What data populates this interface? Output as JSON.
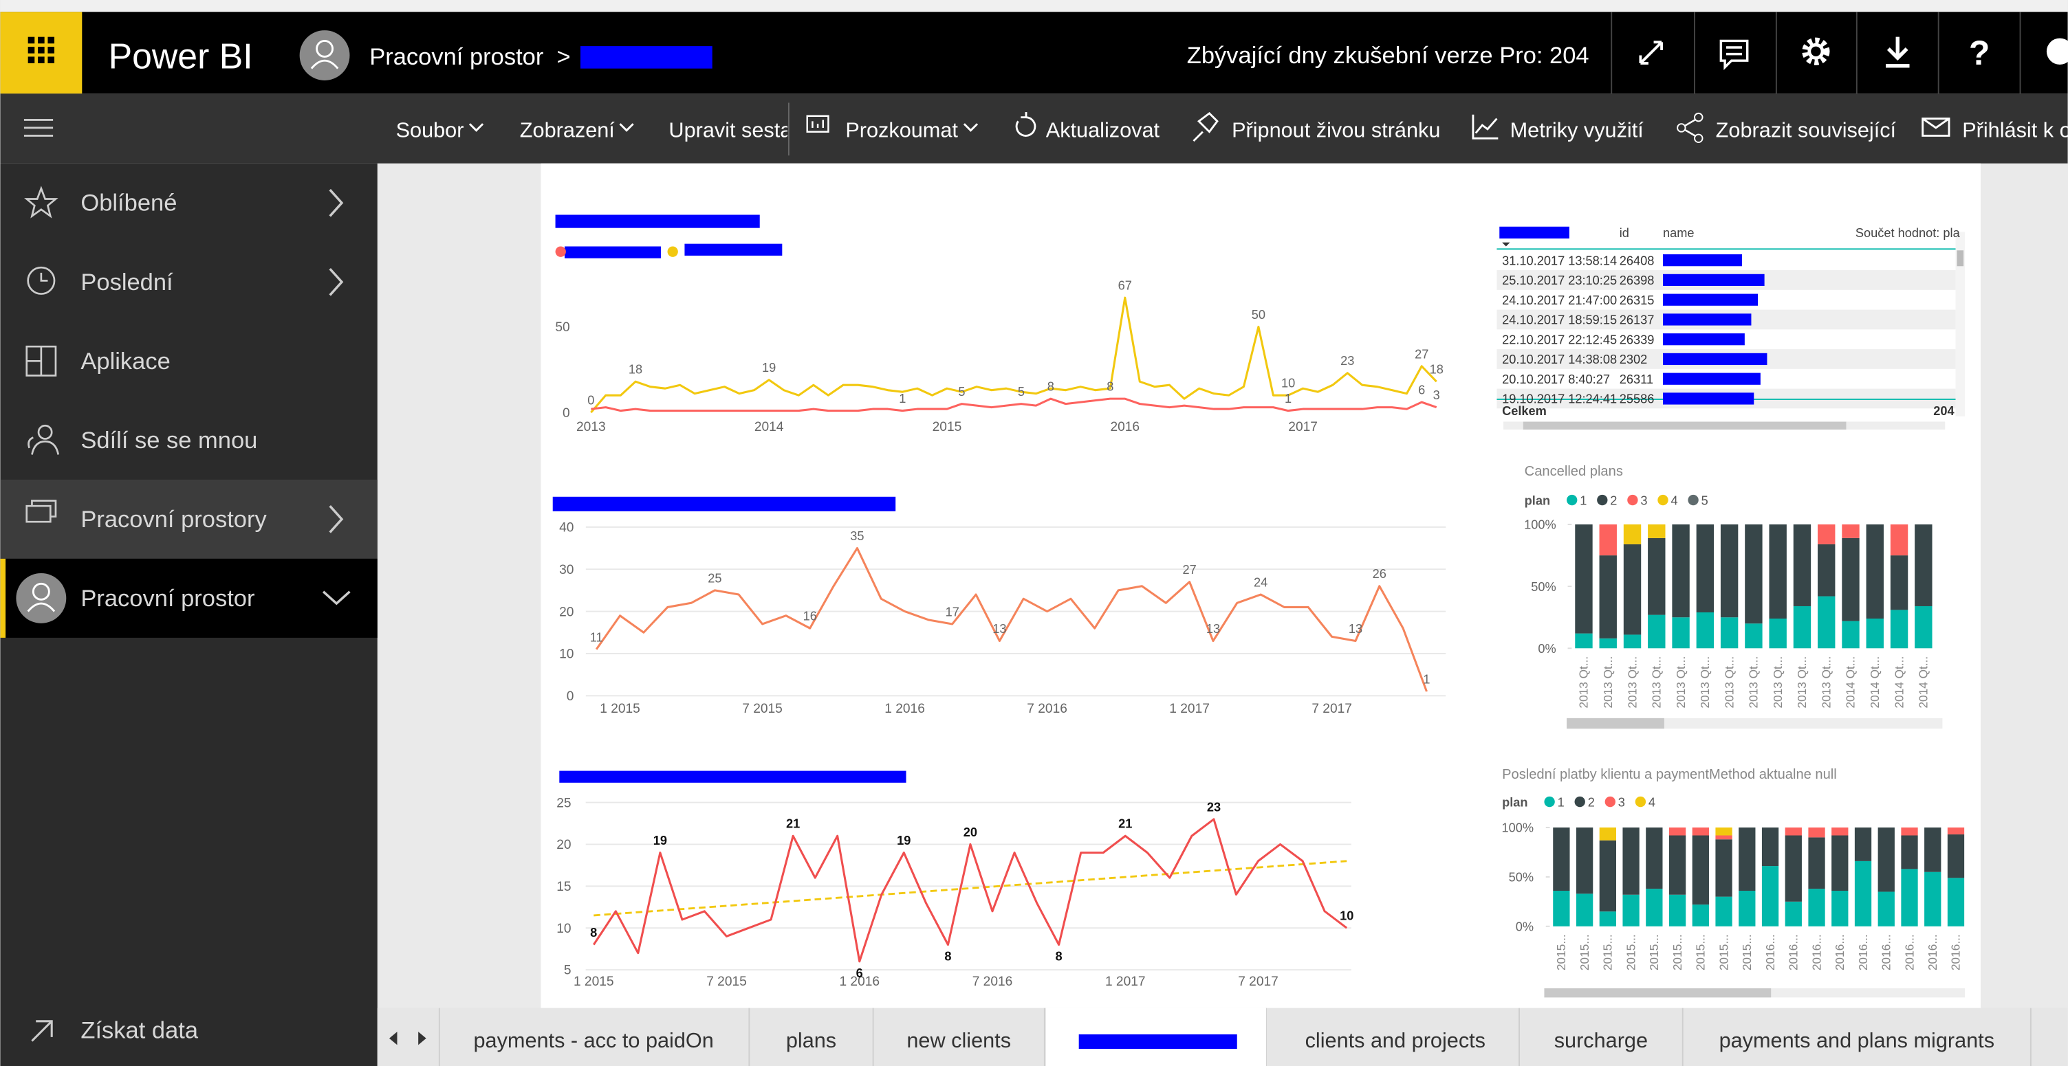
{
  "topbar": {
    "app_name": "Power BI",
    "workspace": "Pracovní prostor",
    "separator": ">",
    "trial": "Zbývající dny zkušební verze Pro: 204",
    "help_icon": "?"
  },
  "toolbar": [
    "Soubor",
    "Zobrazení",
    "Upravit sesta",
    "Prozkoumat",
    "Aktualizovat",
    "Připnout živou stránku",
    "Metriky využití",
    "Zobrazit související",
    "Přihlásit k o"
  ],
  "sidebar": {
    "items": [
      "Oblíbené",
      "Poslední",
      "Aplikace",
      "Sdílí se se mnou",
      "Pracovní prostory",
      "Pracovní prostor"
    ],
    "footer": "Získat data"
  },
  "table": {
    "headers": [
      "id",
      "name",
      "Součet hodnot: pla"
    ],
    "rows": [
      [
        "31.10.2017 13:58:14",
        "26408"
      ],
      [
        "25.10.2017 23:10:25",
        "26398"
      ],
      [
        "24.10.2017 21:47:00",
        "26315"
      ],
      [
        "24.10.2017 18:59:15",
        "26137"
      ],
      [
        "22.10.2017 22:12:45",
        "26339"
      ],
      [
        "20.10.2017 14:38:08",
        "2302"
      ],
      [
        "20.10.2017 8:40:27",
        "26311"
      ],
      [
        "19.10.2017 12:24:41",
        "25586"
      ]
    ],
    "total_label": "Celkem",
    "total": "204"
  },
  "chart_data": [
    {
      "type": "line",
      "x": [
        2013,
        2013.083,
        2013.167,
        2013.25,
        2013.333,
        2013.417,
        2013.5,
        2013.583,
        2013.667,
        2013.75,
        2013.833,
        2013.917,
        2014,
        2014.083,
        2014.167,
        2014.25,
        2014.333,
        2014.417,
        2014.5,
        2014.583,
        2014.667,
        2014.75,
        2014.833,
        2014.917,
        2015,
        2015.083,
        2015.167,
        2015.25,
        2015.333,
        2015.417,
        2015.5,
        2015.583,
        2015.667,
        2015.75,
        2015.833,
        2015.917,
        2016,
        2016.083,
        2016.167,
        2016.25,
        2016.333,
        2016.417,
        2016.5,
        2016.583,
        2016.667,
        2016.75,
        2016.833,
        2016.917,
        2017,
        2017.083,
        2017.167,
        2017.25,
        2017.333,
        2017.417,
        2017.5,
        2017.583,
        2017.667,
        2017.75
      ],
      "xlim": [
        2012.94,
        2017.8
      ],
      "xticks": [
        2013,
        2014,
        2015,
        2016,
        2017
      ],
      "ylim": [
        0,
        75
      ],
      "yticks": [
        0,
        50
      ],
      "grid": false,
      "series": [
        {
          "color": "#f2c80f",
          "values": [
            0,
            10,
            10,
            18,
            15,
            14,
            16,
            11,
            13,
            15,
            11,
            13,
            19,
            13,
            10,
            16,
            10,
            16,
            16,
            15,
            13,
            12,
            14,
            10,
            14,
            12,
            15,
            13,
            14,
            12,
            11,
            14,
            13,
            15,
            13,
            14,
            67,
            18,
            15,
            16,
            8,
            14,
            11,
            10,
            15,
            50,
            10,
            10,
            14,
            12,
            16,
            23,
            16,
            15,
            13,
            11,
            27,
            18
          ],
          "value_labels": [
            "0",
            null,
            null,
            "18",
            null,
            null,
            null,
            null,
            null,
            null,
            null,
            null,
            "19",
            null,
            null,
            null,
            null,
            null,
            null,
            null,
            null,
            null,
            null,
            null,
            null,
            null,
            null,
            null,
            null,
            null,
            null,
            null,
            null,
            null,
            null,
            null,
            "67",
            null,
            null,
            null,
            null,
            null,
            null,
            null,
            null,
            "50",
            null,
            "10",
            null,
            null,
            null,
            "23",
            null,
            null,
            null,
            null,
            "27",
            "18"
          ]
        },
        {
          "color": "#fd625e",
          "values": [
            2,
            3,
            1,
            2,
            1,
            1,
            1,
            1,
            1,
            1,
            1,
            1,
            1,
            1,
            1,
            2,
            1,
            1,
            1,
            2,
            2,
            1,
            2,
            2,
            2,
            5,
            4,
            3,
            4,
            5,
            4,
            8,
            5,
            6,
            7,
            8,
            8,
            5,
            4,
            3,
            4,
            3,
            2,
            2,
            3,
            3,
            3,
            1,
            2,
            2,
            2,
            2,
            2,
            3,
            3,
            2,
            6,
            3
          ],
          "value_labels": [
            null,
            null,
            null,
            null,
            null,
            null,
            null,
            null,
            null,
            null,
            null,
            null,
            null,
            null,
            null,
            null,
            null,
            null,
            null,
            null,
            null,
            "1",
            null,
            null,
            null,
            "5",
            null,
            null,
            null,
            "5",
            null,
            "8",
            null,
            null,
            null,
            "8",
            null,
            null,
            null,
            null,
            null,
            null,
            null,
            null,
            null,
            null,
            null,
            "1",
            null,
            null,
            null,
            null,
            null,
            null,
            null,
            null,
            "6",
            "3"
          ]
        }
      ]
    },
    {
      "type": "line",
      "x": [
        2014.917,
        2015,
        2015.083,
        2015.167,
        2015.25,
        2015.333,
        2015.417,
        2015.5,
        2015.583,
        2015.667,
        2015.75,
        2015.833,
        2015.917,
        2016,
        2016.083,
        2016.167,
        2016.25,
        2016.333,
        2016.417,
        2016.5,
        2016.583,
        2016.667,
        2016.75,
        2016.833,
        2016.917,
        2017,
        2017.083,
        2017.167,
        2017.25,
        2017.333,
        2017.417,
        2017.5,
        2017.583,
        2017.667,
        2017.75,
        2017.833
      ],
      "xlim": [
        2014.88,
        2017.9
      ],
      "xticks": [
        {
          "value": 2015,
          "label": "1 2015"
        },
        {
          "value": 2015.5,
          "label": "7 2015"
        },
        {
          "value": 2016,
          "label": "1 2016"
        },
        {
          "value": 2016.5,
          "label": "7 2016"
        },
        {
          "value": 2017,
          "label": "1 2017"
        },
        {
          "value": 2017.5,
          "label": "7 2017"
        }
      ],
      "ylim": [
        0,
        40
      ],
      "yticks": [
        0,
        10,
        20,
        30,
        40
      ],
      "grid": true,
      "series": [
        {
          "color": "#f5845b",
          "values": [
            11,
            19,
            15,
            21,
            22,
            25,
            24,
            17,
            19,
            16,
            26,
            35,
            23,
            20,
            18,
            17,
            24,
            13,
            23,
            20,
            23,
            16,
            25,
            26,
            22,
            27,
            13,
            22,
            24,
            21,
            21,
            14,
            13,
            26,
            16,
            1
          ],
          "value_labels": [
            "11",
            null,
            null,
            null,
            null,
            "25",
            null,
            null,
            null,
            "16",
            null,
            "35",
            null,
            null,
            null,
            "17",
            null,
            "13",
            null,
            null,
            null,
            null,
            null,
            null,
            null,
            "27",
            "13",
            null,
            "24",
            null,
            null,
            null,
            "13",
            "26",
            null,
            "1"
          ]
        }
      ]
    },
    {
      "type": "line",
      "x": [
        2015,
        2015.083,
        2015.167,
        2015.25,
        2015.333,
        2015.417,
        2015.5,
        2015.583,
        2015.667,
        2015.75,
        2015.833,
        2015.917,
        2016,
        2016.083,
        2016.167,
        2016.25,
        2016.333,
        2016.417,
        2016.5,
        2016.583,
        2016.667,
        2016.75,
        2016.833,
        2016.917,
        2017,
        2017.083,
        2017.167,
        2017.25,
        2017.333,
        2017.417,
        2017.5,
        2017.583,
        2017.667,
        2017.75,
        2017.833
      ],
      "xlim": [
        2014.97,
        2017.85
      ],
      "xticks": [
        {
          "value": 2015,
          "label": "1 2015"
        },
        {
          "value": 2015.5,
          "label": "7 2015"
        },
        {
          "value": 2016,
          "label": "1 2016"
        },
        {
          "value": 2016.5,
          "label": "7 2016"
        },
        {
          "value": 2017,
          "label": "1 2017"
        },
        {
          "value": 2017.5,
          "label": "7 2017"
        }
      ],
      "ylim": [
        5,
        25
      ],
      "yticks": [
        5,
        10,
        15,
        20,
        25
      ],
      "grid": true,
      "series": [
        {
          "color": "#f04e4e",
          "values": [
            8,
            12,
            7,
            19,
            11,
            12,
            9,
            10,
            11,
            21,
            16,
            21,
            6,
            14,
            19,
            13,
            8,
            20,
            12,
            19,
            13,
            8,
            19,
            19,
            21,
            19,
            16,
            21,
            23,
            14,
            18,
            20,
            18,
            12,
            10
          ],
          "value_labels": [
            "8",
            null,
            null,
            "19",
            null,
            null,
            null,
            null,
            null,
            "21",
            null,
            null,
            "6",
            null,
            "19",
            null,
            "8",
            "20",
            null,
            null,
            null,
            "8",
            null,
            null,
            "21",
            null,
            null,
            null,
            "23",
            null,
            null,
            null,
            null,
            null,
            "10"
          ]
        }
      ],
      "trendline": {
        "color": "#f2c80f",
        "values": [
          11.5,
          18
        ]
      }
    },
    {
      "type": "bar",
      "stacked": true,
      "title": "Cancelled plans",
      "legend_title": "plan",
      "categories": [
        "2013 Qt...",
        "2013 Qt...",
        "2013 Qt...",
        "2013 Qt...",
        "2013 Qt...",
        "2013 Qt...",
        "2013 Qt...",
        "2013 Qt...",
        "2013 Qt...",
        "2013 Qt...",
        "2013 Qt...",
        "2014 Qt...",
        "2014 Qt...",
        "2014 Qt...",
        "2014 Qt..."
      ],
      "ylim": [
        0,
        100
      ],
      "yticks": [
        {
          "value": 0,
          "label": "0%"
        },
        {
          "value": 50,
          "label": "50%"
        },
        {
          "value": 100,
          "label": "100%"
        }
      ],
      "series": [
        {
          "name": "1",
          "color": "#01b8aa",
          "values": [
            12,
            8,
            11,
            27,
            25,
            29,
            25,
            20,
            24,
            34,
            42,
            22,
            24,
            31,
            34
          ]
        },
        {
          "name": "2",
          "color": "#374649",
          "values": [
            88,
            67,
            73,
            62,
            75,
            71,
            75,
            80,
            76,
            66,
            42,
            67,
            76,
            44,
            66
          ]
        },
        {
          "name": "3",
          "color": "#fd625e",
          "values": [
            0,
            25,
            0,
            0,
            0,
            0,
            0,
            0,
            0,
            0,
            16,
            11,
            0,
            25,
            0
          ]
        },
        {
          "name": "4",
          "color": "#f2c80f",
          "values": [
            0,
            0,
            16,
            11,
            0,
            0,
            0,
            0,
            0,
            0,
            0,
            0,
            0,
            0,
            0
          ]
        },
        {
          "name": "5",
          "color": "#5f6b6d",
          "values": [
            0,
            0,
            0,
            0,
            0,
            0,
            0,
            0,
            0,
            0,
            0,
            0,
            0,
            0,
            0
          ]
        }
      ]
    },
    {
      "type": "bar",
      "stacked": true,
      "title": "Poslední platby klientu a paymentMethod aktualne null",
      "legend_title": "plan",
      "categories": [
        "2015...",
        "2015...",
        "2015...",
        "2015...",
        "2015...",
        "2015...",
        "2015...",
        "2015...",
        "2015...",
        "2016...",
        "2016...",
        "2016...",
        "2016...",
        "2016...",
        "2016...",
        "2016...",
        "2016...",
        "2016..."
      ],
      "ylim": [
        0,
        100
      ],
      "yticks": [
        {
          "value": 0,
          "label": "0%"
        },
        {
          "value": 50,
          "label": "50%"
        },
        {
          "value": 100,
          "label": "100%"
        }
      ],
      "series": [
        {
          "name": "1",
          "color": "#01b8aa",
          "values": [
            36,
            33,
            15,
            32,
            38,
            32,
            22,
            30,
            36,
            61,
            25,
            38,
            36,
            66,
            35,
            58,
            55,
            49
          ]
        },
        {
          "name": "2",
          "color": "#374649",
          "values": [
            64,
            67,
            72,
            68,
            62,
            60,
            70,
            58,
            64,
            39,
            67,
            52,
            56,
            34,
            65,
            34,
            45,
            44
          ]
        },
        {
          "name": "3",
          "color": "#fd625e",
          "values": [
            0,
            0,
            0,
            0,
            0,
            8,
            8,
            4,
            0,
            0,
            8,
            10,
            8,
            0,
            0,
            8,
            0,
            7
          ]
        },
        {
          "name": "4",
          "color": "#f2c80f",
          "values": [
            0,
            0,
            13,
            0,
            0,
            0,
            0,
            8,
            0,
            0,
            0,
            0,
            0,
            0,
            0,
            0,
            0,
            0
          ]
        }
      ]
    }
  ],
  "tabs": [
    "payments - acc to paidOn",
    "plans",
    "new clients",
    "clients and projects",
    "surcharge",
    "payments and plans migrants"
  ]
}
